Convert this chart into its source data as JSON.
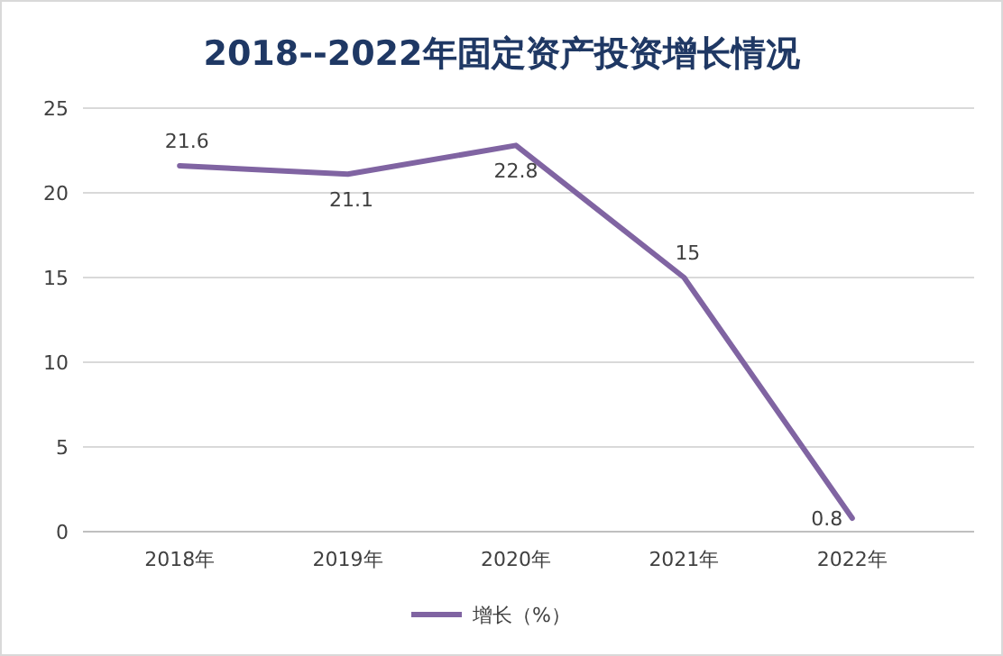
{
  "chart_data": {
    "type": "line",
    "title": "2018--2022年固定资产投资增长情况",
    "categories": [
      "2018年",
      "2019年",
      "2020年",
      "2021年",
      "2022年"
    ],
    "series": [
      {
        "name": "增长（%）",
        "color": "#8064a2",
        "values": [
          21.6,
          21.1,
          22.8,
          15,
          0.8
        ]
      }
    ],
    "ylim": [
      0,
      25
    ],
    "yticks": [
      0,
      5,
      10,
      15,
      20,
      25
    ],
    "grid": "y",
    "legend": "bottom",
    "data_labels": true,
    "marker": "none",
    "line_style": "solid"
  }
}
